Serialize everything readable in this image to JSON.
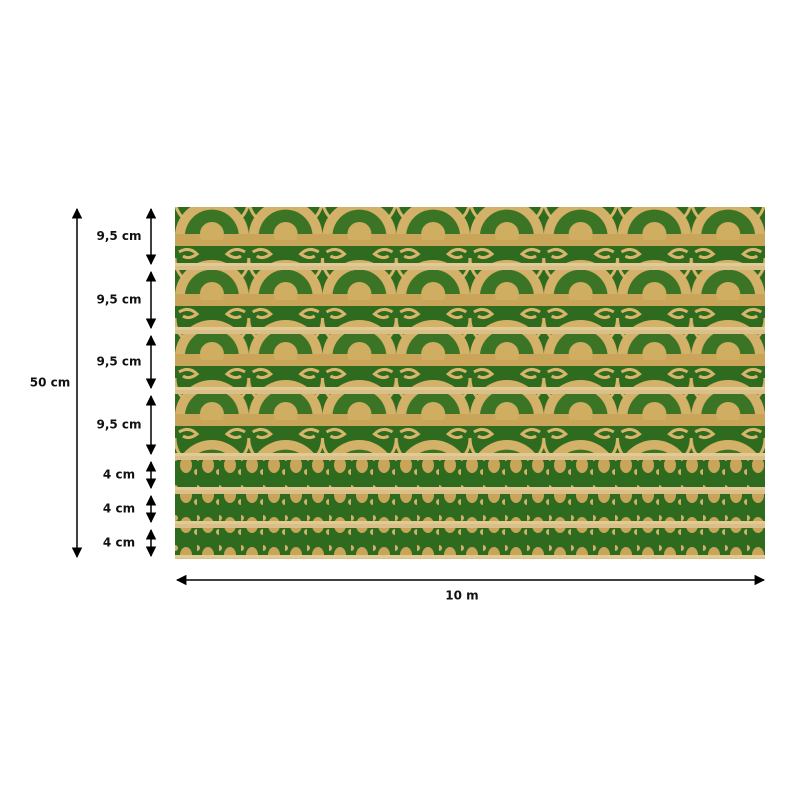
{
  "height_label": "50 cm",
  "strip_labels": [
    "9,5 cm",
    "9,5 cm",
    "9,5 cm",
    "9,5 cm",
    "4 cm",
    "4 cm",
    "4 cm"
  ],
  "width_label": "10 m"
}
